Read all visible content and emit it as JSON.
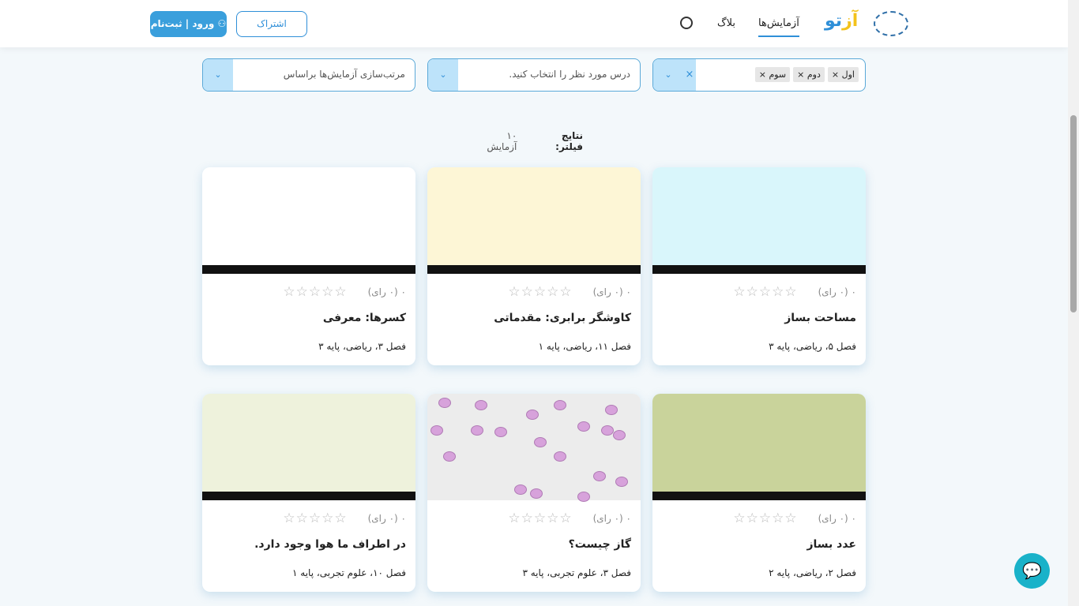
{
  "header": {
    "logo": "آزتو",
    "nav": [
      {
        "label": "آزمایش‌ها",
        "active": true
      },
      {
        "label": "بلاگ"
      }
    ],
    "subscribe": "اشتراک",
    "login": "ورود | ثبت‌نام",
    "icons": [
      "search-icon",
      "user-icon"
    ]
  },
  "filters": {
    "grade": {
      "tags": [
        "اول",
        "دوم",
        "سوم"
      ]
    },
    "subject": {
      "placeholder": "درس مورد نظر را انتخاب کنید."
    },
    "sort": {
      "placeholder": "مرتب‌سازی آزمایش‌ها براساس"
    }
  },
  "results": {
    "label": "نتایج فیلتر:",
    "count": "۱۰ آزمایش"
  },
  "cards": [
    {
      "title": "مساحت بساز",
      "meta": "فصل ۵، ریاضی، پایه ۳",
      "rating": "۰ (۰ رای)",
      "thumb_color": "#d9f6fb"
    },
    {
      "title": "کاوشگر برابری: مقدماتی",
      "meta": "فصل ۱۱، ریاضی، پایه ۱",
      "rating": "۰ (۰ رای)",
      "thumb_color": "#fdf6d6"
    },
    {
      "title": "کسرها: معرفی",
      "meta": "فصل ۳، ریاضی، پایه ۳",
      "rating": "۰ (۰ رای)",
      "thumb_color": "#ffffff"
    },
    {
      "title": "عدد بساز",
      "meta": "فصل ۲، ریاضی، پایه ۲",
      "rating": "۰ (۰ رای)",
      "thumb_color": "#c9d39b"
    },
    {
      "title": "گاز چیست؟",
      "meta": "فصل ۳، علوم تجربی، پایه ۳",
      "rating": "۰ (۰ رای)",
      "thumb_color": "#ececec"
    },
    {
      "title": "در اطراف ما هوا وجود دارد.",
      "meta": "فصل ۱۰، علوم تجربی، پایه ۱",
      "rating": "۰ (۰ رای)",
      "thumb_color": "#eef2dc"
    }
  ],
  "stars": "☆☆☆☆☆"
}
